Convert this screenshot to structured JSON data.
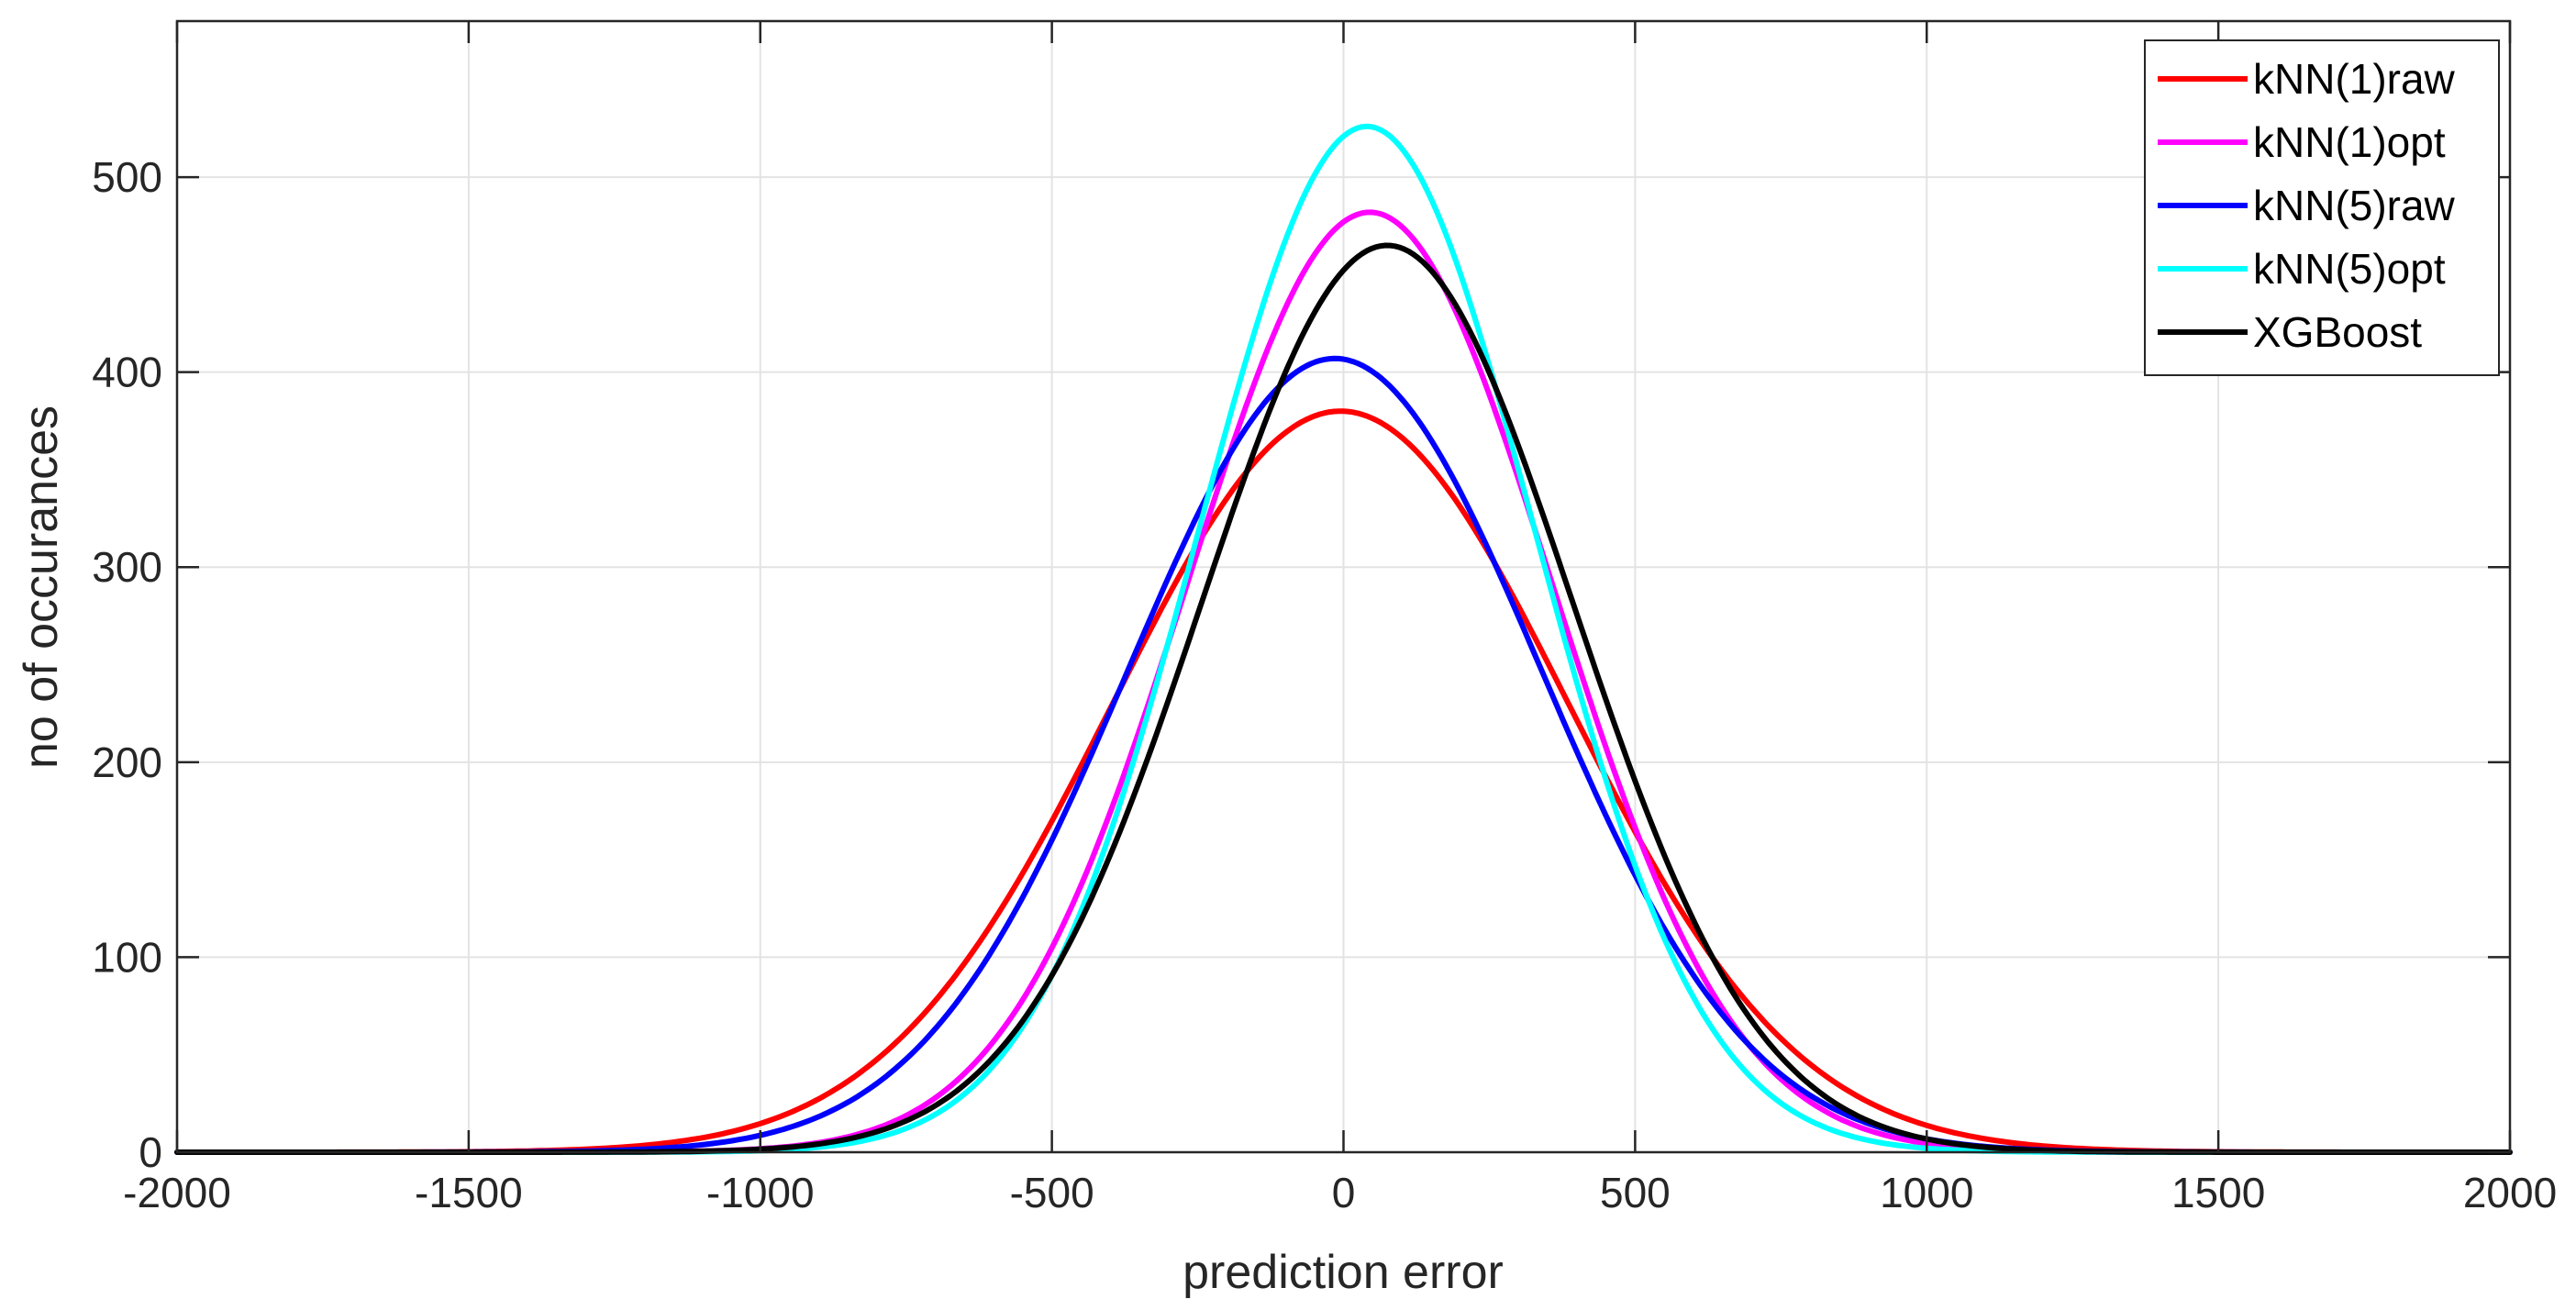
{
  "chart_data": {
    "type": "line",
    "title": "",
    "xlabel": "prediction error",
    "ylabel": "no of occurances",
    "xlim": [
      -2000,
      2000
    ],
    "ylim": [
      0,
      580
    ],
    "xticks": [
      -2000,
      -1500,
      -1000,
      -500,
      0,
      500,
      1000,
      1500,
      2000
    ],
    "yticks": [
      0,
      100,
      200,
      300,
      400,
      500
    ],
    "grid": true,
    "legend_position": "top-right",
    "series": [
      {
        "name": "kNN(1)raw",
        "color": "#ff0000",
        "peak": 380,
        "mean": -5,
        "sigma": 390
      },
      {
        "name": "kNN(1)opt",
        "color": "#ff00ff",
        "peak": 482,
        "mean": 45,
        "sigma": 312
      },
      {
        "name": "kNN(5)raw",
        "color": "#0000ff",
        "peak": 407,
        "mean": -15,
        "sigma": 355
      },
      {
        "name": "kNN(5)opt",
        "color": "#00ffff",
        "peak": 526,
        "mean": 40,
        "sigma": 288
      },
      {
        "name": "XGBoost",
        "color": "#000000",
        "peak": 465,
        "mean": 75,
        "sigma": 318
      }
    ]
  }
}
